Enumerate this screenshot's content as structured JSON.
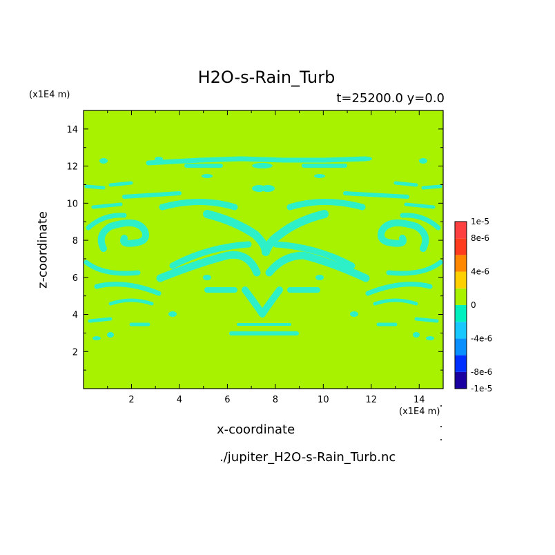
{
  "chart_data": {
    "type": "heatmap",
    "title": "H2O-s-Rain_Turb",
    "subtitle": "t=25200.0 y=0.0",
    "xlabel": "x-coordinate",
    "ylabel": "z-coordinate",
    "x_unit": "(x1E4 m)",
    "y_unit": "(x1E4 m)",
    "source": "./jupiter_H2O-s-Rain_Turb.nc",
    "xlim": [
      0,
      15
    ],
    "ylim": [
      0,
      15
    ],
    "x_ticks": [
      "2",
      "4",
      "6",
      "8",
      "10",
      "12",
      "14"
    ],
    "y_ticks": [
      "2",
      "4",
      "6",
      "8",
      "10",
      "12",
      "14"
    ],
    "background_value": 0,
    "colorbar": {
      "range": [
        -1e-05,
        1e-05
      ],
      "labels": [
        "1e-5",
        "8e-6",
        "4e-6",
        "0",
        "-4e-6",
        "-8e-6",
        "-1e-5"
      ],
      "colors": [
        "#1a00a0",
        "#0030ff",
        "#0a8fff",
        "#17c8ff",
        "#00f0c0",
        "#a8f200",
        "#ffd000",
        "#ff8800",
        "#ff3c1e",
        "#ff4040"
      ]
    },
    "field_colors": {
      "zero": "#a8f200",
      "negative_small": "#2ef0c8"
    }
  }
}
